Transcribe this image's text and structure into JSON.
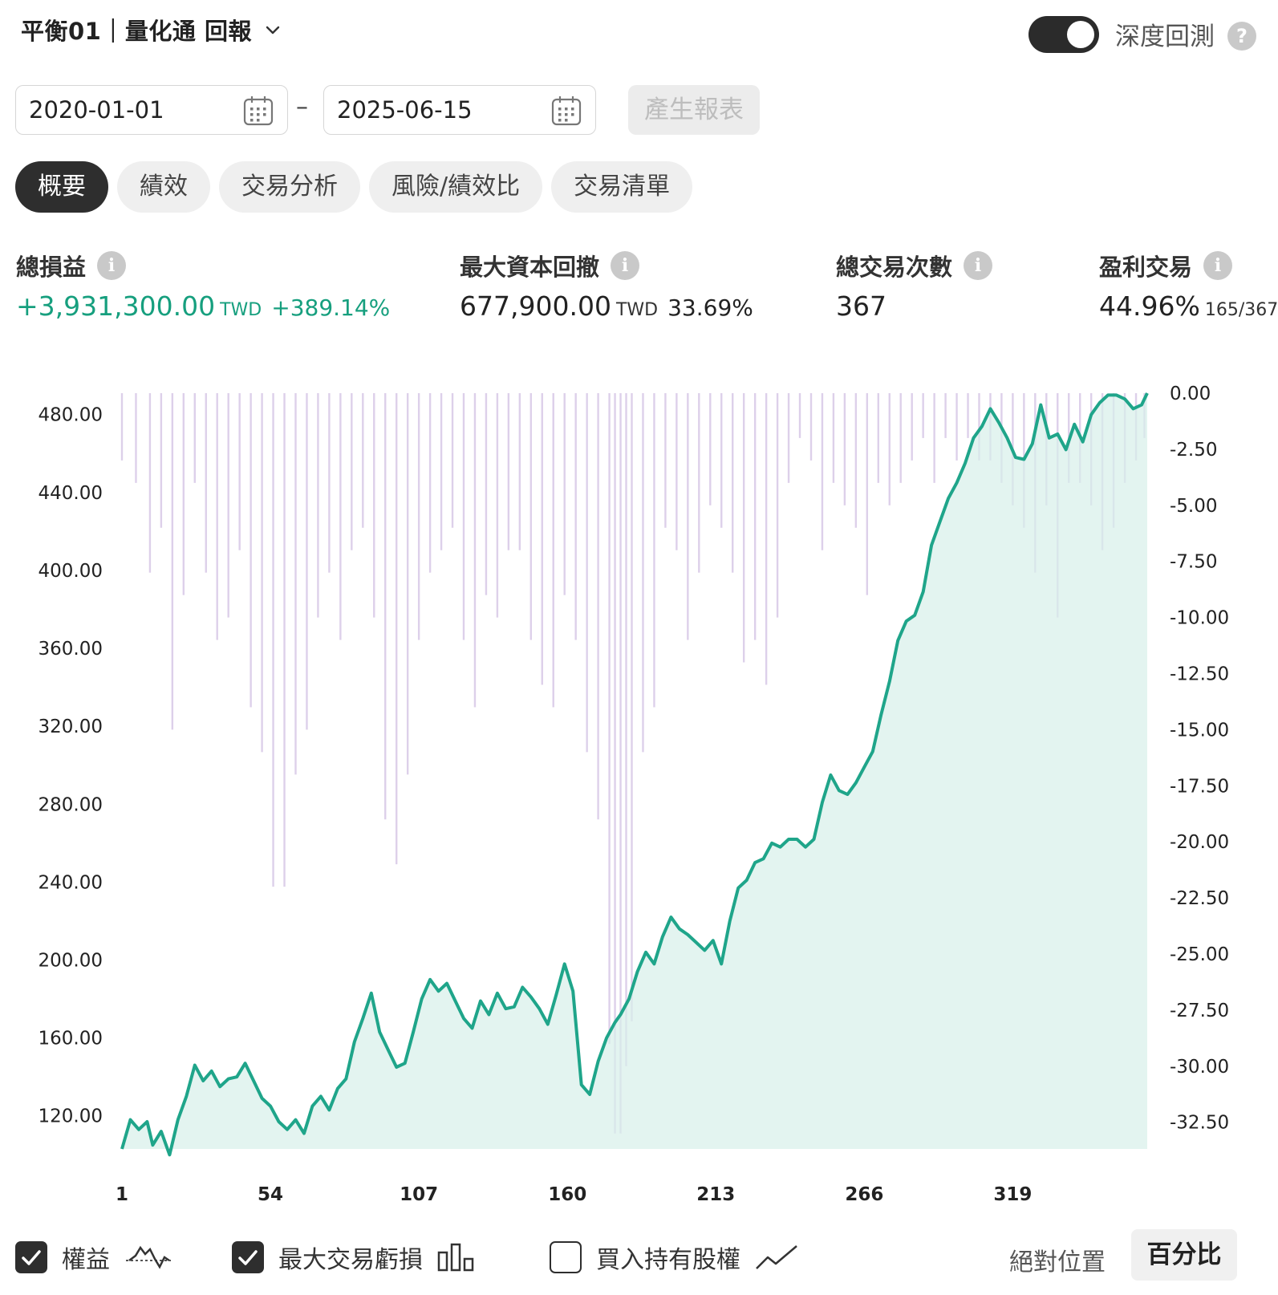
{
  "header": {
    "title": "平衡01｜量化通 回報",
    "deep_backtest_label": "深度回測",
    "deep_backtest_on": true
  },
  "date_range": {
    "start": "2020-01-01",
    "end": "2025-06-15",
    "separator": "–",
    "generate_label": "產生報表"
  },
  "tabs": [
    {
      "label": "概要",
      "active": true
    },
    {
      "label": "績效",
      "active": false
    },
    {
      "label": "交易分析",
      "active": false
    },
    {
      "label": "風險/績效比",
      "active": false
    },
    {
      "label": "交易清單",
      "active": false
    }
  ],
  "stats": {
    "net_profit": {
      "label": "總損益",
      "value": "+3,931,300.00",
      "unit": "TWD",
      "percent": "+389.14%"
    },
    "max_drawdown": {
      "label": "最大資本回撤",
      "value": "677,900.00",
      "unit": "TWD",
      "percent": "33.69%"
    },
    "total_trades": {
      "label": "總交易次數",
      "value": "367"
    },
    "win_rate": {
      "label": "盈利交易",
      "value": "44.96%",
      "detail": "165/367"
    }
  },
  "colors": {
    "equity_line": "#1fa58a",
    "equity_fill": "#d7efe9",
    "drawdown_bars": "#ddd0ea",
    "positive": "#169f7e"
  },
  "chart_data": {
    "type": "line",
    "left_axis_ticks": [
      "480.00",
      "440.00",
      "400.00",
      "360.00",
      "320.00",
      "280.00",
      "240.00",
      "200.00",
      "160.00",
      "120.00"
    ],
    "right_axis_ticks": [
      "0.00",
      "-2.50",
      "-5.00",
      "-7.50",
      "-10.00",
      "-12.50",
      "-15.00",
      "-17.50",
      "-20.00",
      "-22.50",
      "-25.00",
      "-27.50",
      "-30.00",
      "-32.50"
    ],
    "x_ticks": [
      "1",
      "54",
      "107",
      "160",
      "213",
      "266",
      "319"
    ],
    "ylim_left": [
      103,
      491
    ],
    "ylim_right": [
      -33.69,
      0
    ],
    "xlim": [
      1,
      367
    ],
    "series": [
      {
        "name": "權益",
        "style": "line-area",
        "x": [
          1,
          4,
          7,
          10,
          12,
          15,
          18,
          21,
          24,
          27,
          30,
          33,
          36,
          39,
          42,
          45,
          48,
          51,
          54,
          57,
          60,
          63,
          66,
          69,
          72,
          75,
          78,
          81,
          84,
          87,
          90,
          93,
          96,
          99,
          102,
          105,
          108,
          111,
          114,
          117,
          120,
          123,
          126,
          129,
          132,
          135,
          138,
          141,
          144,
          147,
          150,
          153,
          156,
          159,
          162,
          165,
          168,
          171,
          174,
          177,
          179,
          182,
          185,
          188,
          191,
          194,
          197,
          200,
          203,
          206,
          209,
          212,
          215,
          218,
          221,
          224,
          227,
          230,
          233,
          236,
          239,
          242,
          245,
          248,
          251,
          254,
          257,
          260,
          263,
          266,
          269,
          272,
          275,
          278,
          281,
          284,
          287,
          290,
          293,
          296,
          299,
          302,
          305,
          308,
          311,
          314,
          317,
          320,
          323,
          326,
          329,
          332,
          335,
          338,
          341,
          344,
          347,
          350,
          353,
          356,
          359,
          362,
          365,
          367
        ],
        "y": [
          103,
          118,
          113,
          117,
          105,
          112,
          100,
          118,
          130,
          146,
          138,
          143,
          135,
          139,
          140,
          147,
          138,
          129,
          125,
          117,
          113,
          118,
          111,
          125,
          130,
          123,
          134,
          139,
          158,
          170,
          183,
          163,
          154,
          145,
          147,
          163,
          180,
          190,
          184,
          188,
          179,
          170,
          165,
          179,
          172,
          183,
          175,
          176,
          186,
          181,
          175,
          167,
          182,
          198,
          184,
          136,
          131,
          148,
          160,
          168,
          172,
          180,
          194,
          204,
          198,
          212,
          222,
          216,
          213,
          209,
          205,
          210,
          198,
          220,
          237,
          241,
          250,
          252,
          260,
          258,
          262,
          262,
          258,
          262,
          281,
          295,
          287,
          285,
          291,
          299,
          307,
          326,
          343,
          364,
          374,
          377,
          389,
          413,
          425,
          437,
          445,
          455,
          468,
          474,
          483,
          476,
          468,
          458,
          457,
          465,
          485,
          468,
          470,
          462,
          475,
          466,
          480,
          486,
          490,
          490,
          488,
          483,
          485,
          491
        ]
      },
      {
        "name": "最大交易虧損",
        "style": "bars",
        "x": [
          1,
          6,
          11,
          15,
          19,
          23,
          27,
          31,
          35,
          39,
          43,
          47,
          51,
          55,
          59,
          63,
          67,
          71,
          75,
          79,
          83,
          87,
          91,
          95,
          99,
          103,
          107,
          111,
          115,
          119,
          123,
          127,
          131,
          135,
          139,
          143,
          147,
          151,
          155,
          159,
          163,
          167,
          171,
          175,
          177,
          179,
          181,
          183,
          187,
          191,
          195,
          199,
          203,
          207,
          211,
          215,
          219,
          223,
          227,
          231,
          235,
          239,
          243,
          247,
          251,
          255,
          259,
          263,
          267,
          271,
          275,
          279,
          283,
          287,
          291,
          295,
          299,
          303,
          307,
          311,
          315,
          319,
          323,
          327,
          331,
          335,
          339,
          343,
          347,
          351,
          355,
          359,
          363,
          366
        ],
        "values": [
          -3,
          -4,
          -8,
          -6,
          -15,
          -9,
          -4,
          -8,
          -11,
          -10,
          -7,
          -14,
          -16,
          -22,
          -22,
          -17,
          -15,
          -10,
          -8,
          -11,
          -7,
          -6,
          -10,
          -19,
          -21,
          -17,
          -11,
          -8,
          -7,
          -6,
          -11,
          -14,
          -9,
          -10,
          -7,
          -7,
          -11,
          -13,
          -14,
          -9,
          -11,
          -16,
          -19,
          -29,
          -33,
          -33,
          -30,
          -28,
          -16,
          -14,
          -6,
          -7,
          -11,
          -8,
          -5,
          -6,
          -8,
          -12,
          -11,
          -13,
          -10,
          -4,
          -2,
          -3,
          -7,
          -4,
          -5,
          -6,
          -9,
          -4,
          -5,
          -4,
          -3,
          -2,
          -4,
          -2,
          -3,
          -2,
          -3,
          -3,
          -4,
          -5,
          -6,
          -8,
          -5,
          -10,
          -4,
          -4,
          -5,
          -7,
          -6,
          -4,
          -3,
          -2
        ]
      },
      {
        "name": "買入持有股權",
        "style": "line",
        "visible": false
      }
    ]
  },
  "legend": [
    {
      "label": "權益",
      "checked": true,
      "icon": "equity-line-icon"
    },
    {
      "label": "最大交易虧損",
      "checked": true,
      "icon": "bar-chart-icon"
    },
    {
      "label": "買入持有股權",
      "checked": false,
      "icon": "trend-line-icon"
    }
  ],
  "view_mode": {
    "absolute_label": "絕對位置",
    "percent_label": "百分比",
    "selected": "百分比"
  }
}
